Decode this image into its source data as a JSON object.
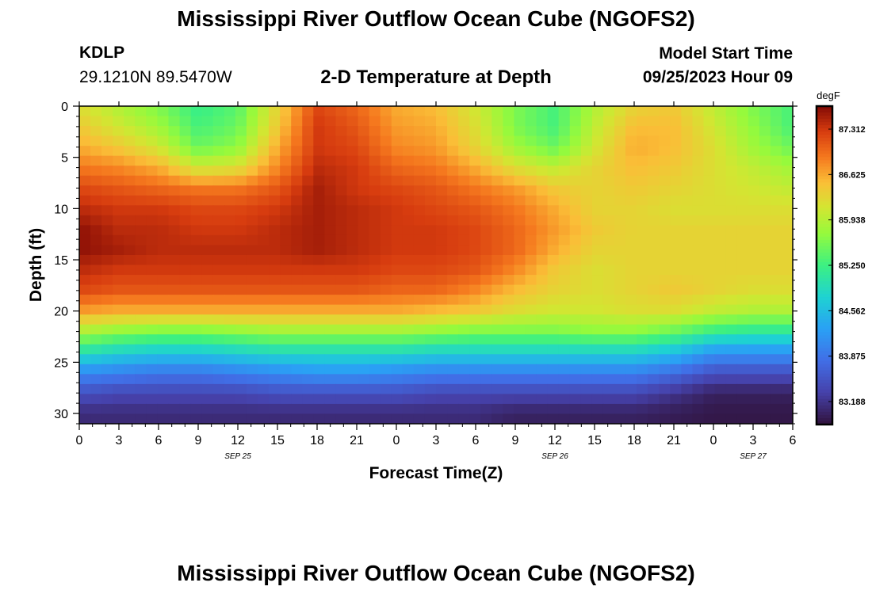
{
  "header": {
    "title": "Mississippi River Outflow Ocean Cube (NGOFS2)",
    "station_id": "KDLP",
    "station_coords": "29.1210N  89.5470W",
    "subtitle": "2-D Temperature at Depth",
    "model_label": "Model Start Time",
    "model_time": "09/25/2023 Hour 09"
  },
  "footer": {
    "title": "Mississippi River Outflow Ocean Cube (NGOFS2)"
  },
  "chart_data": {
    "type": "heatmap",
    "xlabel": "Forecast Time(Z)",
    "ylabel": "Depth (ft)",
    "x_ticks": [
      "0",
      "3",
      "6",
      "9",
      "12",
      "15",
      "18",
      "21",
      "0",
      "3",
      "6",
      "9",
      "12",
      "15",
      "18",
      "21",
      "0",
      "3",
      "6"
    ],
    "x_tick_hours": [
      0,
      3,
      6,
      9,
      12,
      15,
      18,
      21,
      24,
      27,
      30,
      33,
      36,
      39,
      42,
      45,
      48,
      51,
      54
    ],
    "x_range_hours": [
      0,
      54
    ],
    "date_labels": [
      {
        "text": "SEP 25",
        "hour": 12
      },
      {
        "text": "SEP 26",
        "hour": 36
      },
      {
        "text": "SEP 27",
        "hour": 51
      }
    ],
    "y_ticks": [
      "0",
      "5",
      "10",
      "15",
      "20",
      "25",
      "30"
    ],
    "y_tick_values": [
      0,
      5,
      10,
      15,
      20,
      25,
      30
    ],
    "y_range": [
      0,
      31
    ],
    "y_inverted": true,
    "colorbar": {
      "units": "degF",
      "min": 82.84,
      "max": 87.66,
      "labels": [
        "87.312",
        "86.625",
        "85.938",
        "85.250",
        "84.562",
        "83.875",
        "83.188"
      ]
    },
    "grid": false,
    "rows_depth_ft": [
      0,
      2,
      4,
      6,
      8,
      10,
      12,
      14,
      16,
      18,
      20,
      22,
      24,
      26,
      28,
      30
    ],
    "cols_hour": [
      0,
      3,
      6,
      9,
      12,
      15,
      18,
      21,
      24,
      27,
      30,
      33,
      36,
      39,
      42,
      45,
      48,
      51,
      54
    ],
    "values": [
      [
        86.2,
        85.9,
        85.6,
        85.2,
        85.4,
        86.3,
        87.2,
        87.0,
        86.6,
        86.5,
        86.1,
        85.6,
        85.3,
        85.9,
        86.3,
        86.4,
        86.0,
        85.6,
        85.3
      ],
      [
        86.4,
        86.1,
        85.8,
        85.3,
        85.5,
        86.4,
        87.3,
        87.1,
        86.7,
        86.6,
        86.2,
        85.6,
        85.3,
        86.0,
        86.5,
        86.5,
        86.1,
        85.7,
        85.3
      ],
      [
        86.6,
        86.4,
        86.1,
        85.5,
        85.7,
        86.6,
        87.3,
        87.2,
        86.8,
        86.7,
        86.3,
        85.8,
        85.5,
        86.1,
        86.6,
        86.5,
        86.2,
        85.8,
        85.5
      ],
      [
        86.9,
        86.8,
        86.6,
        86.1,
        86.2,
        86.8,
        87.4,
        87.3,
        87.0,
        86.9,
        86.6,
        86.2,
        86.0,
        86.3,
        86.5,
        86.4,
        86.2,
        86.0,
        85.8
      ],
      [
        87.2,
        87.1,
        87.0,
        86.9,
        86.9,
        87.1,
        87.5,
        87.3,
        87.2,
        87.1,
        86.9,
        86.7,
        86.4,
        86.3,
        86.4,
        86.3,
        86.2,
        86.1,
        86.0
      ],
      [
        87.4,
        87.3,
        87.3,
        87.2,
        87.2,
        87.3,
        87.5,
        87.4,
        87.3,
        87.2,
        87.1,
        86.9,
        86.6,
        86.3,
        86.3,
        86.2,
        86.2,
        86.2,
        86.2
      ],
      [
        87.6,
        87.4,
        87.4,
        87.3,
        87.3,
        87.4,
        87.5,
        87.4,
        87.3,
        87.3,
        87.2,
        87.0,
        86.7,
        86.4,
        86.3,
        86.3,
        86.3,
        86.3,
        86.3
      ],
      [
        87.6,
        87.5,
        87.4,
        87.4,
        87.4,
        87.4,
        87.5,
        87.4,
        87.3,
        87.3,
        87.2,
        87.0,
        86.6,
        86.3,
        86.3,
        86.3,
        86.3,
        86.3,
        86.3
      ],
      [
        87.4,
        87.3,
        87.3,
        87.3,
        87.3,
        87.3,
        87.3,
        87.3,
        87.2,
        87.2,
        87.1,
        86.8,
        86.4,
        86.2,
        86.3,
        86.3,
        86.3,
        86.3,
        86.3
      ],
      [
        87.2,
        87.1,
        87.1,
        87.1,
        87.1,
        87.1,
        87.1,
        87.1,
        87.0,
        87.0,
        86.8,
        86.5,
        86.3,
        86.2,
        86.3,
        86.4,
        86.3,
        86.2,
        86.2
      ],
      [
        86.7,
        86.6,
        86.6,
        86.6,
        86.6,
        86.6,
        86.6,
        86.6,
        86.6,
        86.5,
        86.4,
        86.2,
        86.1,
        86.1,
        86.2,
        86.2,
        86.0,
        85.9,
        85.9
      ],
      [
        85.9,
        85.7,
        85.6,
        85.6,
        85.7,
        85.8,
        85.8,
        85.8,
        85.8,
        85.7,
        85.6,
        85.6,
        85.6,
        85.7,
        85.7,
        85.5,
        85.2,
        85.1,
        85.1
      ],
      [
        85.0,
        84.8,
        84.7,
        84.7,
        84.8,
        84.9,
        84.9,
        84.9,
        84.9,
        84.8,
        84.8,
        84.8,
        84.8,
        84.8,
        84.8,
        84.6,
        84.2,
        84.2,
        84.2
      ],
      [
        84.1,
        84.0,
        83.9,
        83.9,
        84.0,
        84.1,
        84.2,
        84.2,
        84.1,
        84.0,
        84.0,
        84.0,
        84.0,
        84.0,
        84.0,
        83.8,
        83.5,
        83.5,
        83.5
      ],
      [
        83.5,
        83.4,
        83.4,
        83.4,
        83.4,
        83.5,
        83.5,
        83.5,
        83.5,
        83.4,
        83.4,
        83.4,
        83.4,
        83.4,
        83.4,
        83.2,
        83.0,
        83.0,
        83.0
      ],
      [
        83.1,
        83.1,
        83.1,
        83.1,
        83.1,
        83.1,
        83.1,
        83.1,
        83.1,
        83.1,
        83.1,
        83.0,
        83.0,
        83.0,
        83.0,
        82.95,
        82.9,
        82.9,
        82.9
      ]
    ]
  }
}
